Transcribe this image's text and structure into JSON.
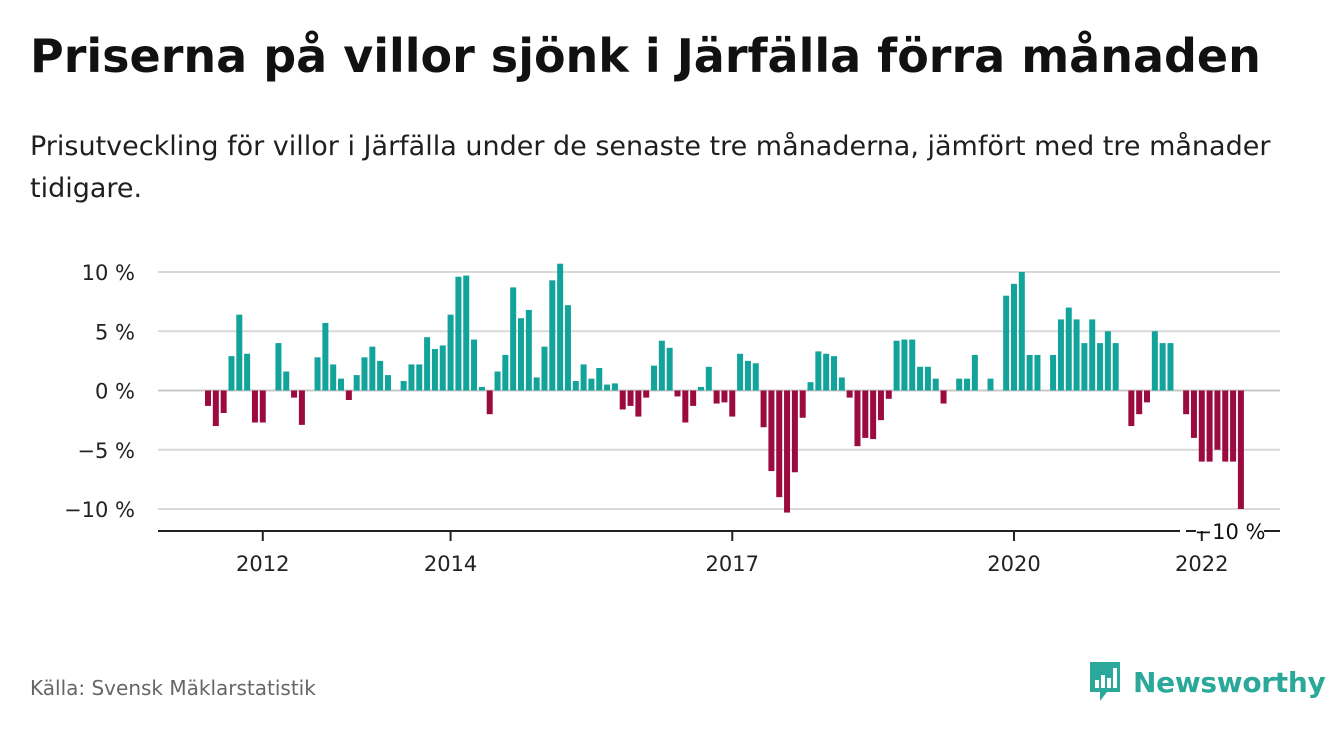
{
  "header": {
    "title": "Priserna på villor sjönk i Järfälla förra månaden",
    "subtitle": "Prisutveckling för villor i Järfälla under de senaste tre månaderna, jämfört med tre månader tidigare."
  },
  "footer": {
    "source": "Källa: Svensk Mäklarstatistik",
    "brand": "Newsworthy"
  },
  "colors": {
    "positive": "#12a39b",
    "negative": "#9b0b3f",
    "grid": "#d9d9d9",
    "brand": "#2aa89a"
  },
  "chart_data": {
    "type": "bar",
    "ylim": [
      -10.5,
      10.5
    ],
    "yticks": [
      10,
      5,
      0,
      -5,
      -10
    ],
    "ytick_labels": [
      "10 %",
      "5 %",
      "0 %",
      "−5 %",
      "−10 %"
    ],
    "xtick_labels": [
      "2012",
      "2014",
      "2017",
      "2020",
      "2022"
    ],
    "xtick_index": [
      7,
      31,
      67,
      103,
      127
    ],
    "last_value_label": "−10 %",
    "grid": true,
    "values": [
      -1.3,
      -3,
      -1.9,
      2.9,
      6.4,
      3.1,
      -2.7,
      -2.7,
      0,
      4,
      1.6,
      -0.6,
      -2.9,
      0,
      2.8,
      5.7,
      2.2,
      1,
      -0.8,
      1.3,
      2.8,
      3.7,
      2.5,
      1.3,
      0,
      0.8,
      2.2,
      2.2,
      4.5,
      3.5,
      3.8,
      6.4,
      9.6,
      9.7,
      4.3,
      0.3,
      -2,
      1.6,
      3,
      8.7,
      6.1,
      6.8,
      1.1,
      3.7,
      9.3,
      10.7,
      7.2,
      0.8,
      2.2,
      1,
      1.9,
      0.5,
      0.6,
      -1.6,
      -1.3,
      -2.2,
      -0.6,
      2.1,
      4.2,
      3.6,
      -0.5,
      -2.7,
      -1.3,
      0.3,
      2,
      -1.1,
      -1,
      -2.2,
      3.1,
      2.5,
      2.3,
      -3.1,
      -6.8,
      -9,
      -10.3,
      -6.9,
      -2.3,
      0.7,
      3.3,
      3.1,
      2.9,
      1.1,
      -0.6,
      -4.7,
      -4,
      -4.1,
      -2.5,
      -0.7,
      4.2,
      4.3,
      4.3,
      2,
      2,
      1,
      -1.1,
      0,
      1,
      1,
      3,
      0,
      1,
      0,
      8,
      9,
      10,
      3,
      3,
      0,
      3,
      6,
      7,
      6,
      4,
      6,
      4,
      5,
      4,
      0,
      -3,
      -2,
      -1,
      5,
      4,
      4,
      0,
      -2,
      -4,
      -6,
      -6,
      -5,
      -6,
      -6,
      -10
    ]
  }
}
